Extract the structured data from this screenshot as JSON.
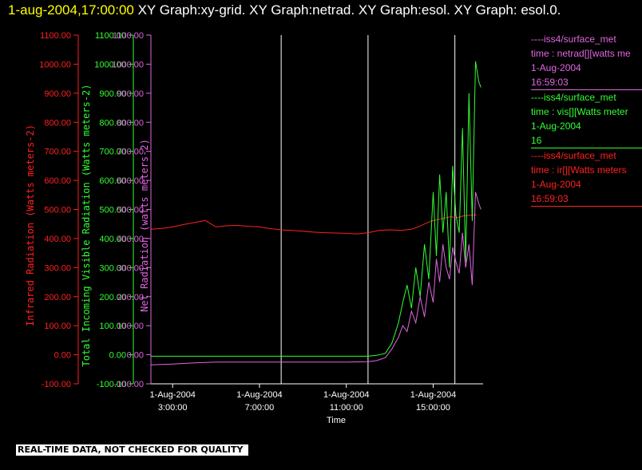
{
  "header": {
    "timestamp": "1-aug-2004,17:00:00",
    "graph_list": "XY Graph:xy-grid.  XY Graph:netrad.  XY Graph:esol.  XY Graph: esol.0."
  },
  "footer": {
    "note": "REAL-TIME DATA, NOT CHECKED FOR QUALITY"
  },
  "colors": {
    "background": "#000000",
    "infrared": "#ff2020",
    "visible": "#33ff33",
    "net": "#e066e0",
    "grid": "#ffffff",
    "timestamp": "#ffff00"
  },
  "legend": [
    {
      "name": "net-legend",
      "color_key": "net",
      "lines": [
        "----iss4/surface_met",
        "time : netrad[][watts me",
        "1-Aug-2004",
        "16:59:03"
      ]
    },
    {
      "name": "visible-legend",
      "color_key": "visible",
      "lines": [
        "----iss4/surface_met",
        "time : vis[][Watts meter",
        "1-Aug-2004",
        "16"
      ]
    },
    {
      "name": "infrared-legend",
      "color_key": "infrared",
      "lines": [
        "----iss4/surface_met",
        "time : ir[][Watts meters",
        "1-Aug-2004",
        "16:59:03"
      ]
    }
  ],
  "chart_data": {
    "type": "line",
    "title": "",
    "xlabel": "Time",
    "x_unit": "hours",
    "xlim": [
      2,
      17.3
    ],
    "x_ticks": [
      {
        "x": 3,
        "lines": [
          "1-Aug-2004",
          "3:00:00"
        ]
      },
      {
        "x": 7,
        "lines": [
          "1-Aug-2004",
          "7:00:00"
        ]
      },
      {
        "x": 11,
        "lines": [
          "1-Aug-2004",
          "11:00:00"
        ]
      },
      {
        "x": 15,
        "lines": [
          "1-Aug-2004",
          "15:00:00"
        ]
      }
    ],
    "vertical_gridlines_x": [
      8,
      12,
      16
    ],
    "y_axes": [
      {
        "name": "infrared-axis",
        "color_key": "infrared",
        "label": "Infrared Radiation (Watts meters-2)",
        "ylim": [
          -100,
          1100
        ],
        "ticks": [
          "-100.00",
          "0.00",
          "100.00",
          "200.00",
          "300.00",
          "400.00",
          "500.00",
          "600.00",
          "700.00",
          "800.00",
          "900.00",
          "1000.00",
          "1100.00"
        ]
      },
      {
        "name": "visible-axis",
        "color_key": "visible",
        "label": "Total Incoming Visible Radiation (Watts meters-2)",
        "ylim": [
          -100,
          1100
        ],
        "ticks": [
          "-100.00",
          "0.00",
          "100.00",
          "200.00",
          "300.00",
          "400.00",
          "500.00",
          "600.00",
          "700.00",
          "800.00",
          "900.00",
          "1000.00",
          "1100.00"
        ]
      },
      {
        "name": "net-axis",
        "color_key": "net",
        "label": "Net Radiation (watts meters-2)",
        "ylim": [
          -100,
          1100
        ],
        "ticks": [
          "-100.00",
          "0.00",
          "100.00",
          "200.00",
          "300.00",
          "400.00",
          "500.00",
          "600.00",
          "700.00",
          "800.00",
          "900.00",
          "1000.00",
          "1100.00"
        ]
      }
    ],
    "series": [
      {
        "name": "ir",
        "color_key": "infrared",
        "x": [
          2.0,
          2.5,
          3.0,
          3.5,
          4.0,
          4.5,
          5.0,
          5.5,
          6.0,
          6.5,
          7.0,
          7.5,
          8.0,
          8.5,
          9.0,
          9.5,
          10.0,
          10.5,
          11.0,
          11.5,
          12.0,
          12.5,
          13.0,
          13.5,
          14.0,
          14.3,
          14.6,
          14.9,
          15.2,
          15.5,
          15.8,
          16.1,
          16.4,
          16.7,
          17.0
        ],
        "y": [
          432,
          435,
          440,
          448,
          455,
          462,
          440,
          444,
          445,
          442,
          440,
          434,
          430,
          428,
          425,
          422,
          420,
          419,
          418,
          416,
          420,
          428,
          430,
          428,
          432,
          440,
          450,
          460,
          465,
          470,
          475,
          472,
          478,
          480,
          482
        ]
      },
      {
        "name": "vis",
        "color_key": "visible",
        "x": [
          2.0,
          3.0,
          4.0,
          5.0,
          6.0,
          7.0,
          8.0,
          9.0,
          10.0,
          11.0,
          12.0,
          12.4,
          12.8,
          13.1,
          13.4,
          13.6,
          13.8,
          14.0,
          14.2,
          14.4,
          14.6,
          14.8,
          15.0,
          15.15,
          15.3,
          15.45,
          15.6,
          15.75,
          15.9,
          16.05,
          16.2,
          16.35,
          16.5,
          16.65,
          16.8,
          16.95,
          17.1,
          17.2
        ],
        "y": [
          -5,
          -5,
          -5,
          -5,
          -5,
          -5,
          -5,
          -5,
          -5,
          -5,
          -5,
          -2,
          5,
          40,
          110,
          180,
          240,
          160,
          300,
          200,
          380,
          260,
          560,
          340,
          620,
          420,
          560,
          300,
          650,
          480,
          420,
          780,
          320,
          900,
          460,
          1010,
          940,
          920
        ]
      },
      {
        "name": "netrad",
        "color_key": "net",
        "x": [
          2.0,
          3.0,
          4.0,
          5.0,
          6.0,
          7.0,
          8.0,
          9.0,
          10.0,
          11.0,
          12.0,
          12.4,
          12.8,
          13.1,
          13.4,
          13.6,
          13.8,
          14.0,
          14.2,
          14.4,
          14.6,
          14.8,
          15.0,
          15.15,
          15.3,
          15.45,
          15.6,
          15.75,
          15.9,
          16.05,
          16.2,
          16.35,
          16.5,
          16.65,
          16.8,
          16.95,
          17.1,
          17.2
        ],
        "y": [
          -35,
          -32,
          -28,
          -25,
          -25,
          -25,
          -25,
          -25,
          -25,
          -25,
          -24,
          -20,
          -10,
          20,
          60,
          100,
          80,
          150,
          110,
          200,
          130,
          250,
          180,
          330,
          250,
          380,
          300,
          260,
          370,
          320,
          280,
          420,
          300,
          380,
          240,
          560,
          520,
          500
        ]
      }
    ]
  }
}
